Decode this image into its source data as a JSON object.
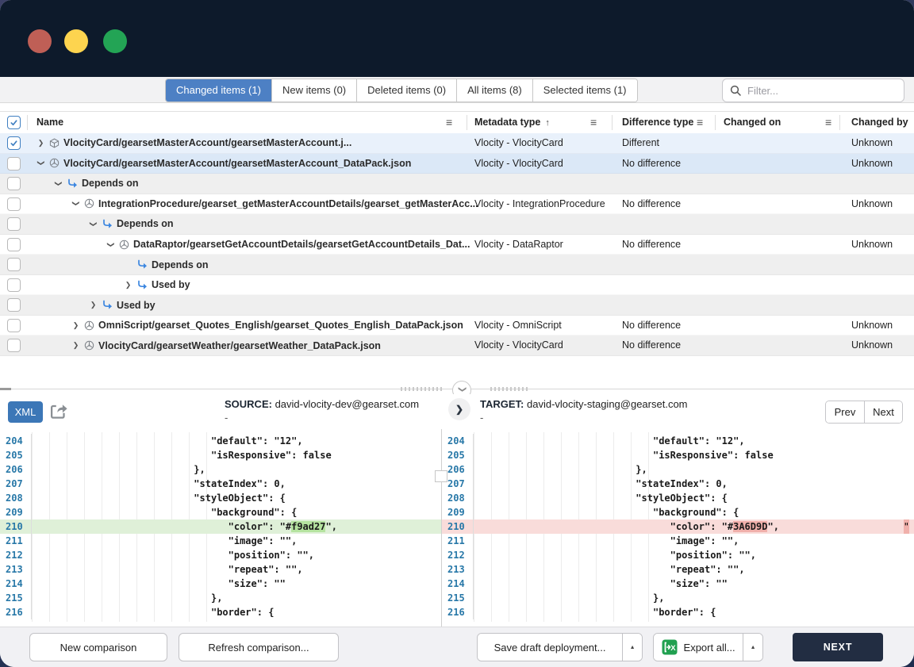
{
  "window": {
    "controls": [
      "close",
      "minimize",
      "zoom"
    ]
  },
  "colors": {
    "titlebar": "#0d1a2b",
    "accent_blue": "#4d80c4",
    "xml_button": "#3c77b7",
    "added_line": "#dff0d8",
    "added_chunk": "#b5e3a0",
    "removed_line": "#f9dcda",
    "removed_chunk": "#f0b0ab",
    "excel_green": "#21a050",
    "next_button": "#222d42",
    "traffic_red": "#bf5f56",
    "traffic_yellow": "#fdd44f",
    "traffic_green": "#23a455"
  },
  "icons": {
    "expander_closed": "❯",
    "collapse_chevron": "❯",
    "direction_chevron": "❯",
    "hamburger": "≡",
    "sort_asc": "↑",
    "caret_up": "▲"
  },
  "tabs": [
    {
      "label": "Changed items (1)",
      "active": true
    },
    {
      "label": "New items (0)",
      "active": false
    },
    {
      "label": "Deleted items (0)",
      "active": false
    },
    {
      "label": "All items (8)",
      "active": false
    },
    {
      "label": "Selected items (1)",
      "active": false
    }
  ],
  "filter": {
    "placeholder": "Filter..."
  },
  "table": {
    "columns": [
      {
        "label": "Name",
        "menu": true
      },
      {
        "label": "Metadata type",
        "sort": "asc",
        "menu": true
      },
      {
        "label": "Difference type",
        "menu": true
      },
      {
        "label": "Changed on",
        "menu": true
      },
      {
        "label": "Changed by",
        "menu": false
      }
    ],
    "rows": [
      {
        "name": "VlocityCard/gearsetMasterAccount/gearsetMasterAccount.j...",
        "metadata_type": "Vlocity - VlocityCard",
        "difference_type": "Different",
        "changed_on": "",
        "changed_by": "Unknown",
        "indent": 0,
        "expander": "closed",
        "icon": "cube",
        "checked": true,
        "bg": "sel1"
      },
      {
        "name": "VlocityCard/gearsetMasterAccount/gearsetMasterAccount_DataPack.json",
        "metadata_type": "Vlocity - VlocityCard",
        "difference_type": "No difference",
        "changed_on": "",
        "changed_by": "Unknown",
        "indent": 0,
        "expander": "open",
        "icon": "hub",
        "checked": false,
        "bg": "sel2"
      },
      {
        "name": "Depends on",
        "metadata_type": "",
        "difference_type": "",
        "changed_on": "",
        "changed_by": "",
        "indent": 1,
        "expander": "open",
        "icon": "dep",
        "checked": false,
        "bg": "alt"
      },
      {
        "name": "IntegrationProcedure/gearset_getMasterAccountDetails/gearset_getMasterAcc...",
        "metadata_type": "Vlocity - IntegrationProcedure",
        "difference_type": "No difference",
        "changed_on": "",
        "changed_by": "Unknown",
        "indent": 2,
        "expander": "open",
        "icon": "hub",
        "checked": false,
        "bg": "white"
      },
      {
        "name": "Depends on",
        "metadata_type": "",
        "difference_type": "",
        "changed_on": "",
        "changed_by": "",
        "indent": 3,
        "expander": "open",
        "icon": "dep",
        "checked": false,
        "bg": "alt"
      },
      {
        "name": "DataRaptor/gearsetGetAccountDetails/gearsetGetAccountDetails_Dat...",
        "metadata_type": "Vlocity - DataRaptor",
        "difference_type": "No difference",
        "changed_on": "",
        "changed_by": "Unknown",
        "indent": 4,
        "expander": "open",
        "icon": "hub",
        "checked": false,
        "bg": "white"
      },
      {
        "name": "Depends on",
        "metadata_type": "",
        "difference_type": "",
        "changed_on": "",
        "changed_by": "",
        "indent": 5,
        "expander": "none",
        "icon": "dep",
        "checked": false,
        "bg": "alt"
      },
      {
        "name": "Used by",
        "metadata_type": "",
        "difference_type": "",
        "changed_on": "",
        "changed_by": "",
        "indent": 5,
        "expander": "closed",
        "icon": "dep",
        "checked": false,
        "bg": "white"
      },
      {
        "name": "Used by",
        "metadata_type": "",
        "difference_type": "",
        "changed_on": "",
        "changed_by": "",
        "indent": 3,
        "expander": "closed",
        "icon": "dep",
        "checked": false,
        "bg": "alt"
      },
      {
        "name": "OmniScript/gearset_Quotes_English/gearset_Quotes_English_DataPack.json",
        "metadata_type": "Vlocity - OmniScript",
        "difference_type": "No difference",
        "changed_on": "",
        "changed_by": "Unknown",
        "indent": 2,
        "expander": "closed",
        "icon": "hub",
        "checked": false,
        "bg": "white"
      },
      {
        "name": "VlocityCard/gearsetWeather/gearsetWeather_DataPack.json",
        "metadata_type": "Vlocity - VlocityCard",
        "difference_type": "No difference",
        "changed_on": "",
        "changed_by": "Unknown",
        "indent": 2,
        "expander": "closed",
        "icon": "hub",
        "checked": false,
        "bg": "alt"
      }
    ]
  },
  "diff": {
    "format_label": "XML",
    "source_label": "SOURCE:",
    "source_value": "david-vlocity-dev@gearset.com",
    "source_secondary": "-",
    "target_label": "TARGET:",
    "target_value": "david-vlocity-staging@gearset.com",
    "target_secondary": "-",
    "prev_label": "Prev",
    "next_label": "Next",
    "left_lines": [
      {
        "n": 204,
        "sp": 31,
        "t": "\"default\": \"12\","
      },
      {
        "n": 205,
        "sp": 31,
        "t": "\"isResponsive\": false"
      },
      {
        "n": 206,
        "sp": 28,
        "t": "},"
      },
      {
        "n": 207,
        "sp": 28,
        "t": "\"stateIndex\": 0,"
      },
      {
        "n": 208,
        "sp": 28,
        "t": "\"styleObject\": {"
      },
      {
        "n": 209,
        "sp": 31,
        "t": "\"background\": {"
      },
      {
        "n": 210,
        "sp": 34,
        "pre": "\"color\": \"#",
        "chunk": "f9ad27",
        "post": "\",",
        "state": "green"
      },
      {
        "n": 211,
        "sp": 34,
        "t": "\"image\": \"\","
      },
      {
        "n": 212,
        "sp": 34,
        "t": "\"position\": \"\","
      },
      {
        "n": 213,
        "sp": 34,
        "t": "\"repeat\": \"\","
      },
      {
        "n": 214,
        "sp": 34,
        "t": "\"size\": \"\""
      },
      {
        "n": 215,
        "sp": 31,
        "t": "},"
      },
      {
        "n": 216,
        "sp": 31,
        "t": "\"border\": {"
      }
    ],
    "right_lines": [
      {
        "n": 204,
        "sp": 31,
        "t": "\"default\": \"12\","
      },
      {
        "n": 205,
        "sp": 31,
        "t": "\"isResponsive\": false"
      },
      {
        "n": 206,
        "sp": 28,
        "t": "},"
      },
      {
        "n": 207,
        "sp": 28,
        "t": "\"stateIndex\": 0,"
      },
      {
        "n": 208,
        "sp": 28,
        "t": "\"styleObject\": {"
      },
      {
        "n": 209,
        "sp": 31,
        "t": "\"background\": {"
      },
      {
        "n": 210,
        "sp": 34,
        "pre": "\"color\": \"#",
        "chunk": "3A6D9D",
        "post": "\",",
        "tail": "\"",
        "state": "red"
      },
      {
        "n": 211,
        "sp": 34,
        "t": "\"image\": \"\","
      },
      {
        "n": 212,
        "sp": 34,
        "t": "\"position\": \"\","
      },
      {
        "n": 213,
        "sp": 34,
        "t": "\"repeat\": \"\","
      },
      {
        "n": 214,
        "sp": 34,
        "t": "\"size\": \"\""
      },
      {
        "n": 215,
        "sp": 31,
        "t": "},"
      },
      {
        "n": 216,
        "sp": 31,
        "t": "\"border\": {"
      }
    ]
  },
  "footer": {
    "new_comparison": "New comparison",
    "refresh_comparison": "Refresh comparison...",
    "save_draft": "Save draft deployment...",
    "export_all": "Export all...",
    "next": "NEXT"
  }
}
